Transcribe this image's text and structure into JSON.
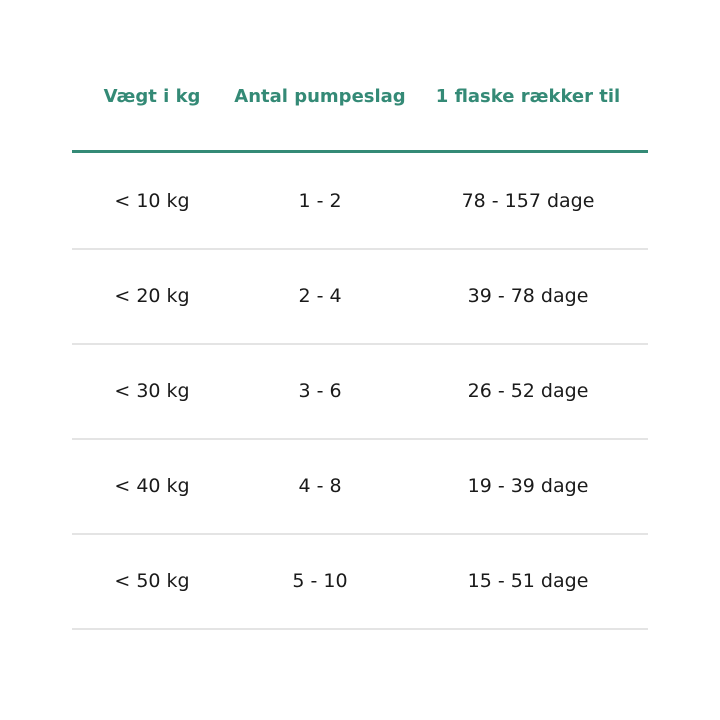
{
  "table": {
    "headers": [
      "Vægt i kg",
      "Antal pumpeslag",
      "1 flaske rækker til"
    ],
    "rows": [
      [
        "< 10 kg",
        "1 - 2",
        "78 - 157 dage"
      ],
      [
        "< 20 kg",
        "2 - 4",
        "39 - 78 dage"
      ],
      [
        "< 30 kg",
        "3 - 6",
        "26 - 52 dage"
      ],
      [
        "< 40 kg",
        "4 - 8",
        "19 - 39 dage"
      ],
      [
        "< 50 kg",
        "5 - 10",
        "15 - 51 dage"
      ]
    ],
    "accent_color": "#348a76"
  }
}
